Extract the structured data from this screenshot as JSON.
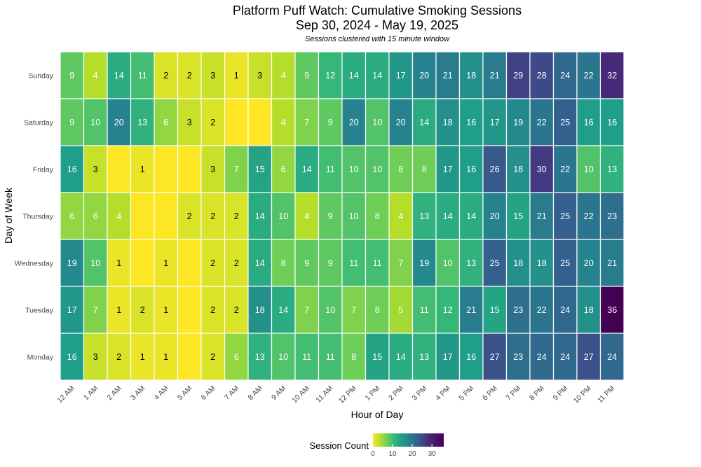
{
  "chart_data": {
    "type": "heatmap",
    "title": "Platform Puff Watch: Cumulative Smoking Sessions",
    "title_line2": "Sep 30, 2024 - May 19, 2025",
    "subtitle": "Sessions clustered with 15 minute window",
    "xlabel": "Hour of Day",
    "ylabel": "Day of Week",
    "x": [
      "12 AM",
      "1 AM",
      "2 AM",
      "3 AM",
      "4 AM",
      "5 AM",
      "6 AM",
      "7 AM",
      "8 AM",
      "9 AM",
      "10 AM",
      "11 AM",
      "12 PM",
      "1 PM",
      "2 PM",
      "3 PM",
      "4 PM",
      "5 PM",
      "6 PM",
      "7 PM",
      "8 PM",
      "9 PM",
      "10 PM",
      "11 PM"
    ],
    "y": [
      "Sunday",
      "Saturday",
      "Friday",
      "Thursday",
      "Wednesday",
      "Tuesday",
      "Monday"
    ],
    "values": [
      [
        9,
        4,
        14,
        11,
        2,
        2,
        3,
        1,
        3,
        4,
        9,
        12,
        14,
        14,
        17,
        20,
        21,
        18,
        21,
        29,
        28,
        24,
        22,
        32
      ],
      [
        9,
        10,
        20,
        13,
        6,
        3,
        2,
        0,
        0,
        4,
        7,
        9,
        20,
        10,
        20,
        14,
        18,
        16,
        17,
        19,
        22,
        25,
        16,
        16
      ],
      [
        16,
        3,
        0,
        1,
        0,
        0,
        3,
        7,
        15,
        6,
        14,
        11,
        10,
        10,
        8,
        8,
        17,
        16,
        26,
        18,
        30,
        22,
        10,
        13
      ],
      [
        6,
        6,
        4,
        0,
        0,
        2,
        2,
        2,
        14,
        10,
        4,
        9,
        10,
        8,
        4,
        13,
        14,
        14,
        20,
        15,
        21,
        25,
        22,
        23
      ],
      [
        19,
        10,
        1,
        0,
        1,
        0,
        2,
        2,
        14,
        8,
        9,
        9,
        11,
        11,
        7,
        19,
        10,
        13,
        25,
        18,
        18,
        25,
        20,
        21
      ],
      [
        17,
        7,
        1,
        2,
        1,
        0,
        2,
        2,
        18,
        14,
        7,
        10,
        7,
        8,
        5,
        11,
        12,
        21,
        15,
        23,
        22,
        24,
        18,
        36
      ],
      [
        16,
        3,
        2,
        1,
        1,
        0,
        2,
        6,
        13,
        10,
        11,
        11,
        8,
        15,
        14,
        13,
        17,
        16,
        27,
        23,
        24,
        24,
        27,
        24
      ]
    ],
    "colorscale": "viridis (reversed)",
    "color_range": [
      0,
      36
    ],
    "legend": {
      "title": "Session Count",
      "ticks": [
        0,
        10,
        20,
        30
      ],
      "position": "bottom"
    }
  }
}
